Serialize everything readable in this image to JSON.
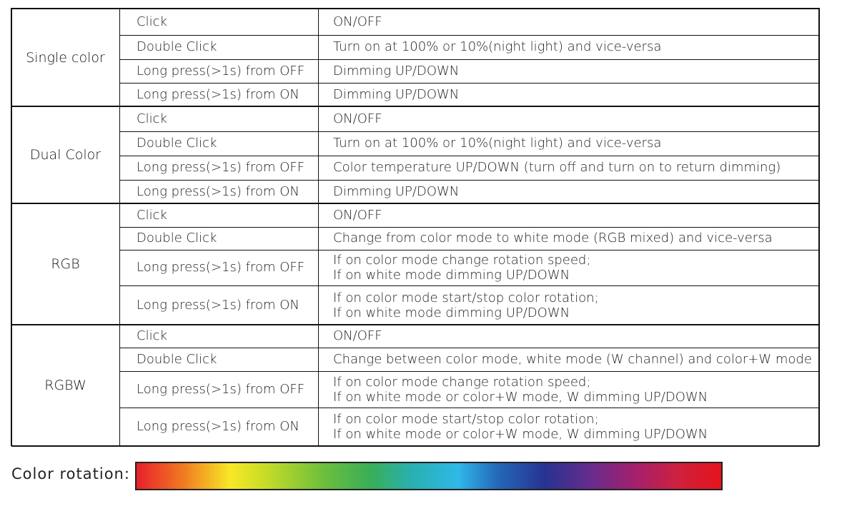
{
  "groups": [
    {
      "name": "Single color",
      "rows": [
        [
          "Click",
          "ON/OFF"
        ],
        [
          "Double Click",
          "Turn on at 100% or 10%(night light) and vice-versa"
        ],
        [
          "Long press(>1s) from OFF",
          "Dimming UP/DOWN"
        ],
        [
          "Long press(>1s) from ON",
          "Dimming UP/DOWN"
        ]
      ]
    },
    {
      "name": "Dual Color",
      "rows": [
        [
          "Click",
          "ON/OFF"
        ],
        [
          "Double Click",
          "Turn on at 100% or 10%(night light) and vice-versa"
        ],
        [
          "Long press(>1s) from OFF",
          "Color temperature UP/DOWN (turn off and turn on to return dimming)"
        ],
        [
          "Long press(>1s) from ON",
          "Dimming UP/DOWN"
        ]
      ]
    },
    {
      "name": "RGB",
      "rows": [
        [
          "Click",
          "ON/OFF"
        ],
        [
          "Double Click",
          "Change from color mode to white mode (RGB  mixed)  and vice-versa"
        ],
        [
          "Long press(>1s) from OFF",
          [
            "If on color mode change rotation speed;",
            "If on white mode dimming UP/DOWN"
          ]
        ],
        [
          "Long press(>1s) from ON",
          [
            "If on color mode start/stop color rotation;",
            "If on white mode dimming UP/DOWN"
          ]
        ]
      ]
    },
    {
      "name": "RGBW",
      "rows": [
        [
          "Click",
          "ON/OFF"
        ],
        [
          "Double Click",
          "Change between color mode, white mode (W  channel)  and color+W mode"
        ],
        [
          "Long press(>1s) from OFF",
          [
            "If on color mode change rotation speed;",
            "If on white mode or color+W mode, W dimming UP/DOWN"
          ]
        ],
        [
          "Long press(>1s) from ON",
          [
            "If on color mode start/stop color rotation;",
            "If on white mode or color+W mode, W dimming UP/DOWN"
          ]
        ]
      ]
    }
  ],
  "color_rotation": {
    "label": "Color rotation:"
  }
}
